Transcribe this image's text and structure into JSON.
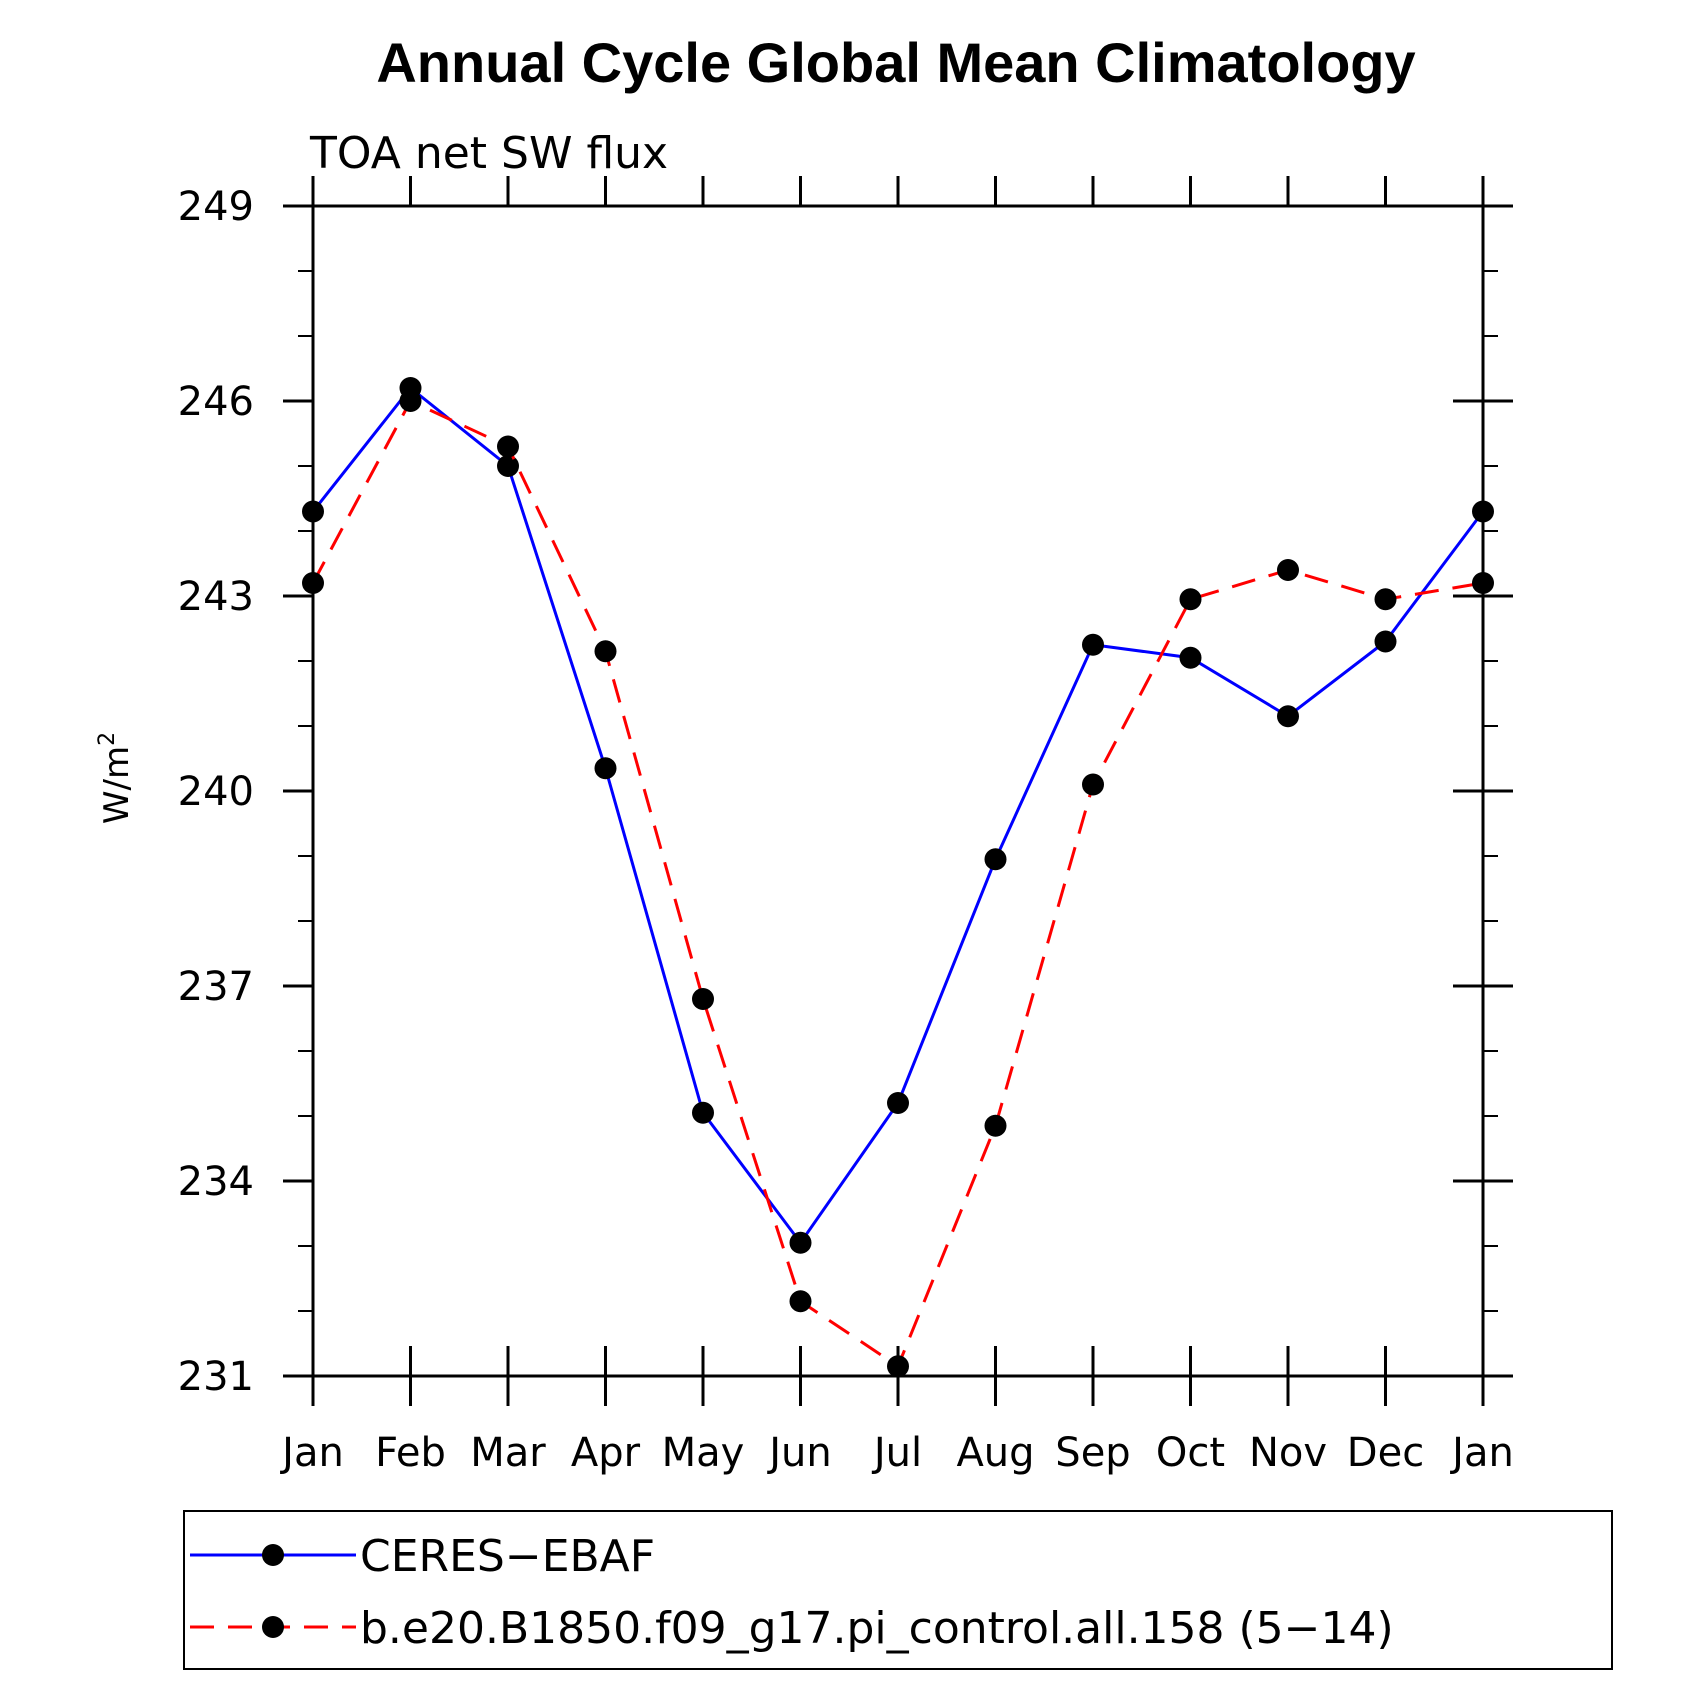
{
  "chart_data": {
    "type": "line",
    "title": "Annual Cycle Global Mean Climatology",
    "subtitle": "TOA net SW flux",
    "ylabel": "W/m",
    "ylabel_superscript": "2",
    "xlabel": "",
    "categories": [
      "Jan",
      "Feb",
      "Mar",
      "Apr",
      "May",
      "Jun",
      "Jul",
      "Aug",
      "Sep",
      "Oct",
      "Nov",
      "Dec",
      "Jan"
    ],
    "ylim": [
      231,
      249
    ],
    "yticks": [
      231,
      234,
      237,
      240,
      243,
      246,
      249
    ],
    "grid": false,
    "legend_position": "bottom",
    "series": [
      {
        "name": "CERES−EBAF",
        "color": "#0000ff",
        "dashed": false,
        "values": [
          244.3,
          246.2,
          245.0,
          240.35,
          235.05,
          233.05,
          235.2,
          238.95,
          242.25,
          242.05,
          241.15,
          242.3,
          244.3
        ]
      },
      {
        "name": "b.e20.B1850.f09_g17.pi_control.all.158 (5−14)",
        "color": "#ff0000",
        "dashed": true,
        "values": [
          243.2,
          246.0,
          245.3,
          242.15,
          236.8,
          232.15,
          231.15,
          234.85,
          240.1,
          242.95,
          243.4,
          242.95,
          243.2
        ]
      }
    ]
  }
}
